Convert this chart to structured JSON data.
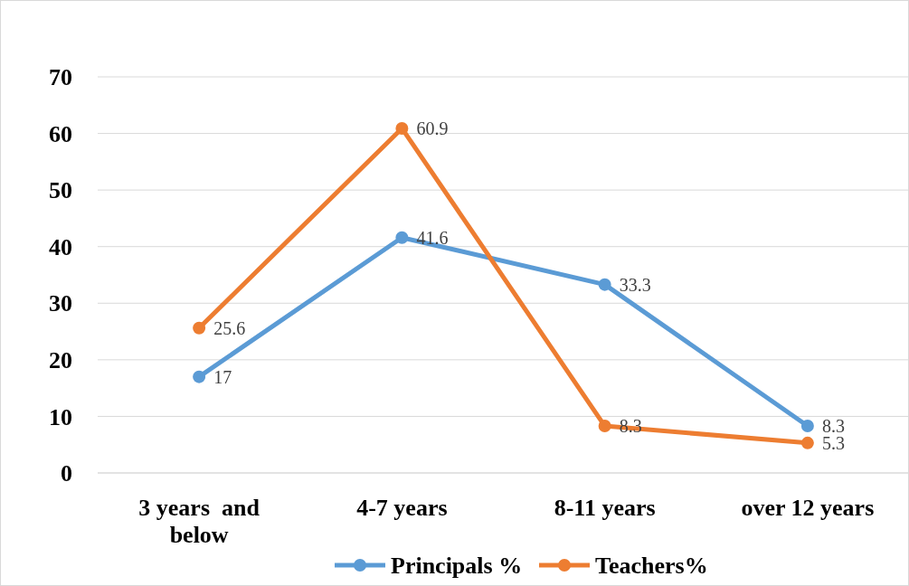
{
  "chart_data": {
    "type": "line",
    "categories": [
      "3 years  and below",
      "4-7 years",
      "8-11 years",
      "over 12 years"
    ],
    "series": [
      {
        "name": "Principals %",
        "color": "#5b9bd5",
        "values": [
          17,
          41.6,
          33.3,
          8.3
        ]
      },
      {
        "name": "Teachers%",
        "color": "#ed7d31",
        "values": [
          25.6,
          60.9,
          8.3,
          5.3
        ]
      }
    ],
    "ylim": [
      0,
      70
    ],
    "yticks": [
      0,
      10,
      20,
      30,
      40,
      50,
      60,
      70
    ],
    "grid": "y",
    "legend": "bottom",
    "marker": "circle",
    "data_labels": true
  }
}
